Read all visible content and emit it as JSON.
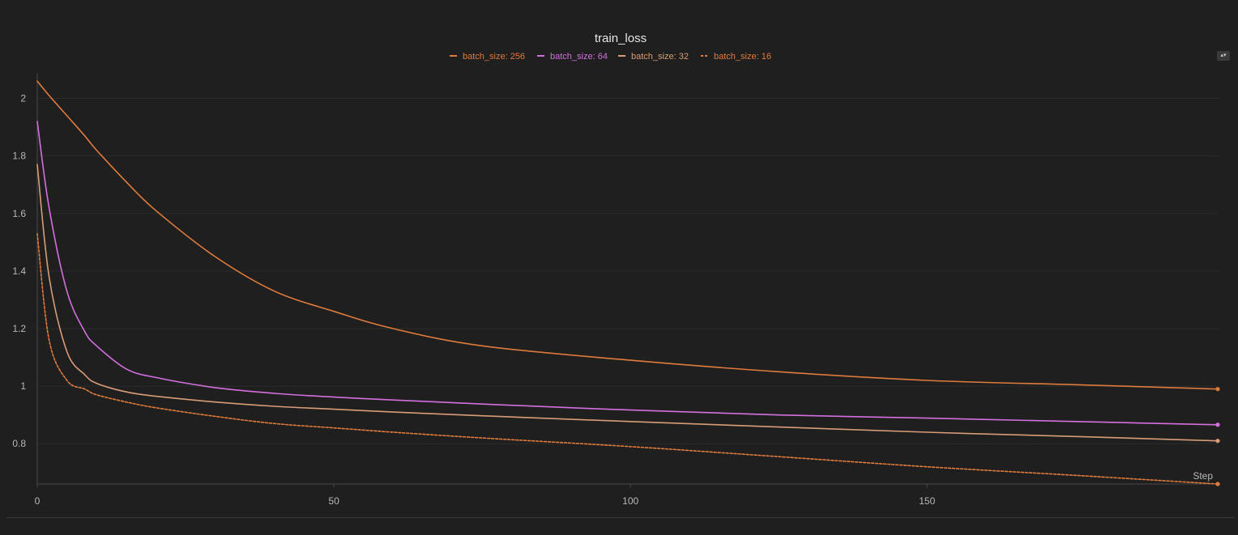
{
  "chart_data": {
    "type": "line",
    "title": "train_loss",
    "xlabel": "Step",
    "ylabel": "",
    "xlim": [
      0,
      199
    ],
    "ylim": [
      0.66,
      2.1
    ],
    "x_ticks": [
      0,
      50,
      100,
      150
    ],
    "y_ticks": [
      0.8,
      1,
      1.2,
      1.4,
      1.6,
      1.8,
      2
    ],
    "y_tick_labels": [
      "0.8",
      "1",
      "1.2",
      "1.4",
      "1.6",
      "1.8",
      "2"
    ],
    "grid": true,
    "legend_position": "top-center",
    "x": [
      0,
      2,
      5,
      8,
      10,
      15,
      20,
      30,
      40,
      50,
      60,
      75,
      100,
      125,
      150,
      175,
      199
    ],
    "series": [
      {
        "name": "batch_size: 256",
        "color": "#e07b3c",
        "dash": "solid",
        "values": [
          2.06,
          2.01,
          1.94,
          1.87,
          1.82,
          1.71,
          1.61,
          1.45,
          1.33,
          1.26,
          1.2,
          1.14,
          1.09,
          1.05,
          1.02,
          1.005,
          0.99
        ]
      },
      {
        "name": "batch_size: 64",
        "color": "#d46fe0",
        "dash": "solid",
        "values": [
          1.92,
          1.62,
          1.33,
          1.19,
          1.14,
          1.06,
          1.03,
          0.995,
          0.975,
          0.962,
          0.952,
          0.938,
          0.917,
          0.9,
          0.889,
          0.877,
          0.866
        ]
      },
      {
        "name": "batch_size: 32",
        "color": "#d99c78",
        "dash": "solid",
        "values": [
          1.77,
          1.38,
          1.12,
          1.04,
          1.01,
          0.98,
          0.965,
          0.945,
          0.93,
          0.92,
          0.91,
          0.897,
          0.877,
          0.858,
          0.84,
          0.825,
          0.81
        ]
      },
      {
        "name": "batch_size: 16",
        "color": "#e07b3c",
        "dash": "dashed",
        "values": [
          1.53,
          1.16,
          1.02,
          0.99,
          0.97,
          0.945,
          0.925,
          0.895,
          0.87,
          0.855,
          0.84,
          0.82,
          0.79,
          0.755,
          0.72,
          0.69,
          0.66
        ]
      }
    ]
  }
}
